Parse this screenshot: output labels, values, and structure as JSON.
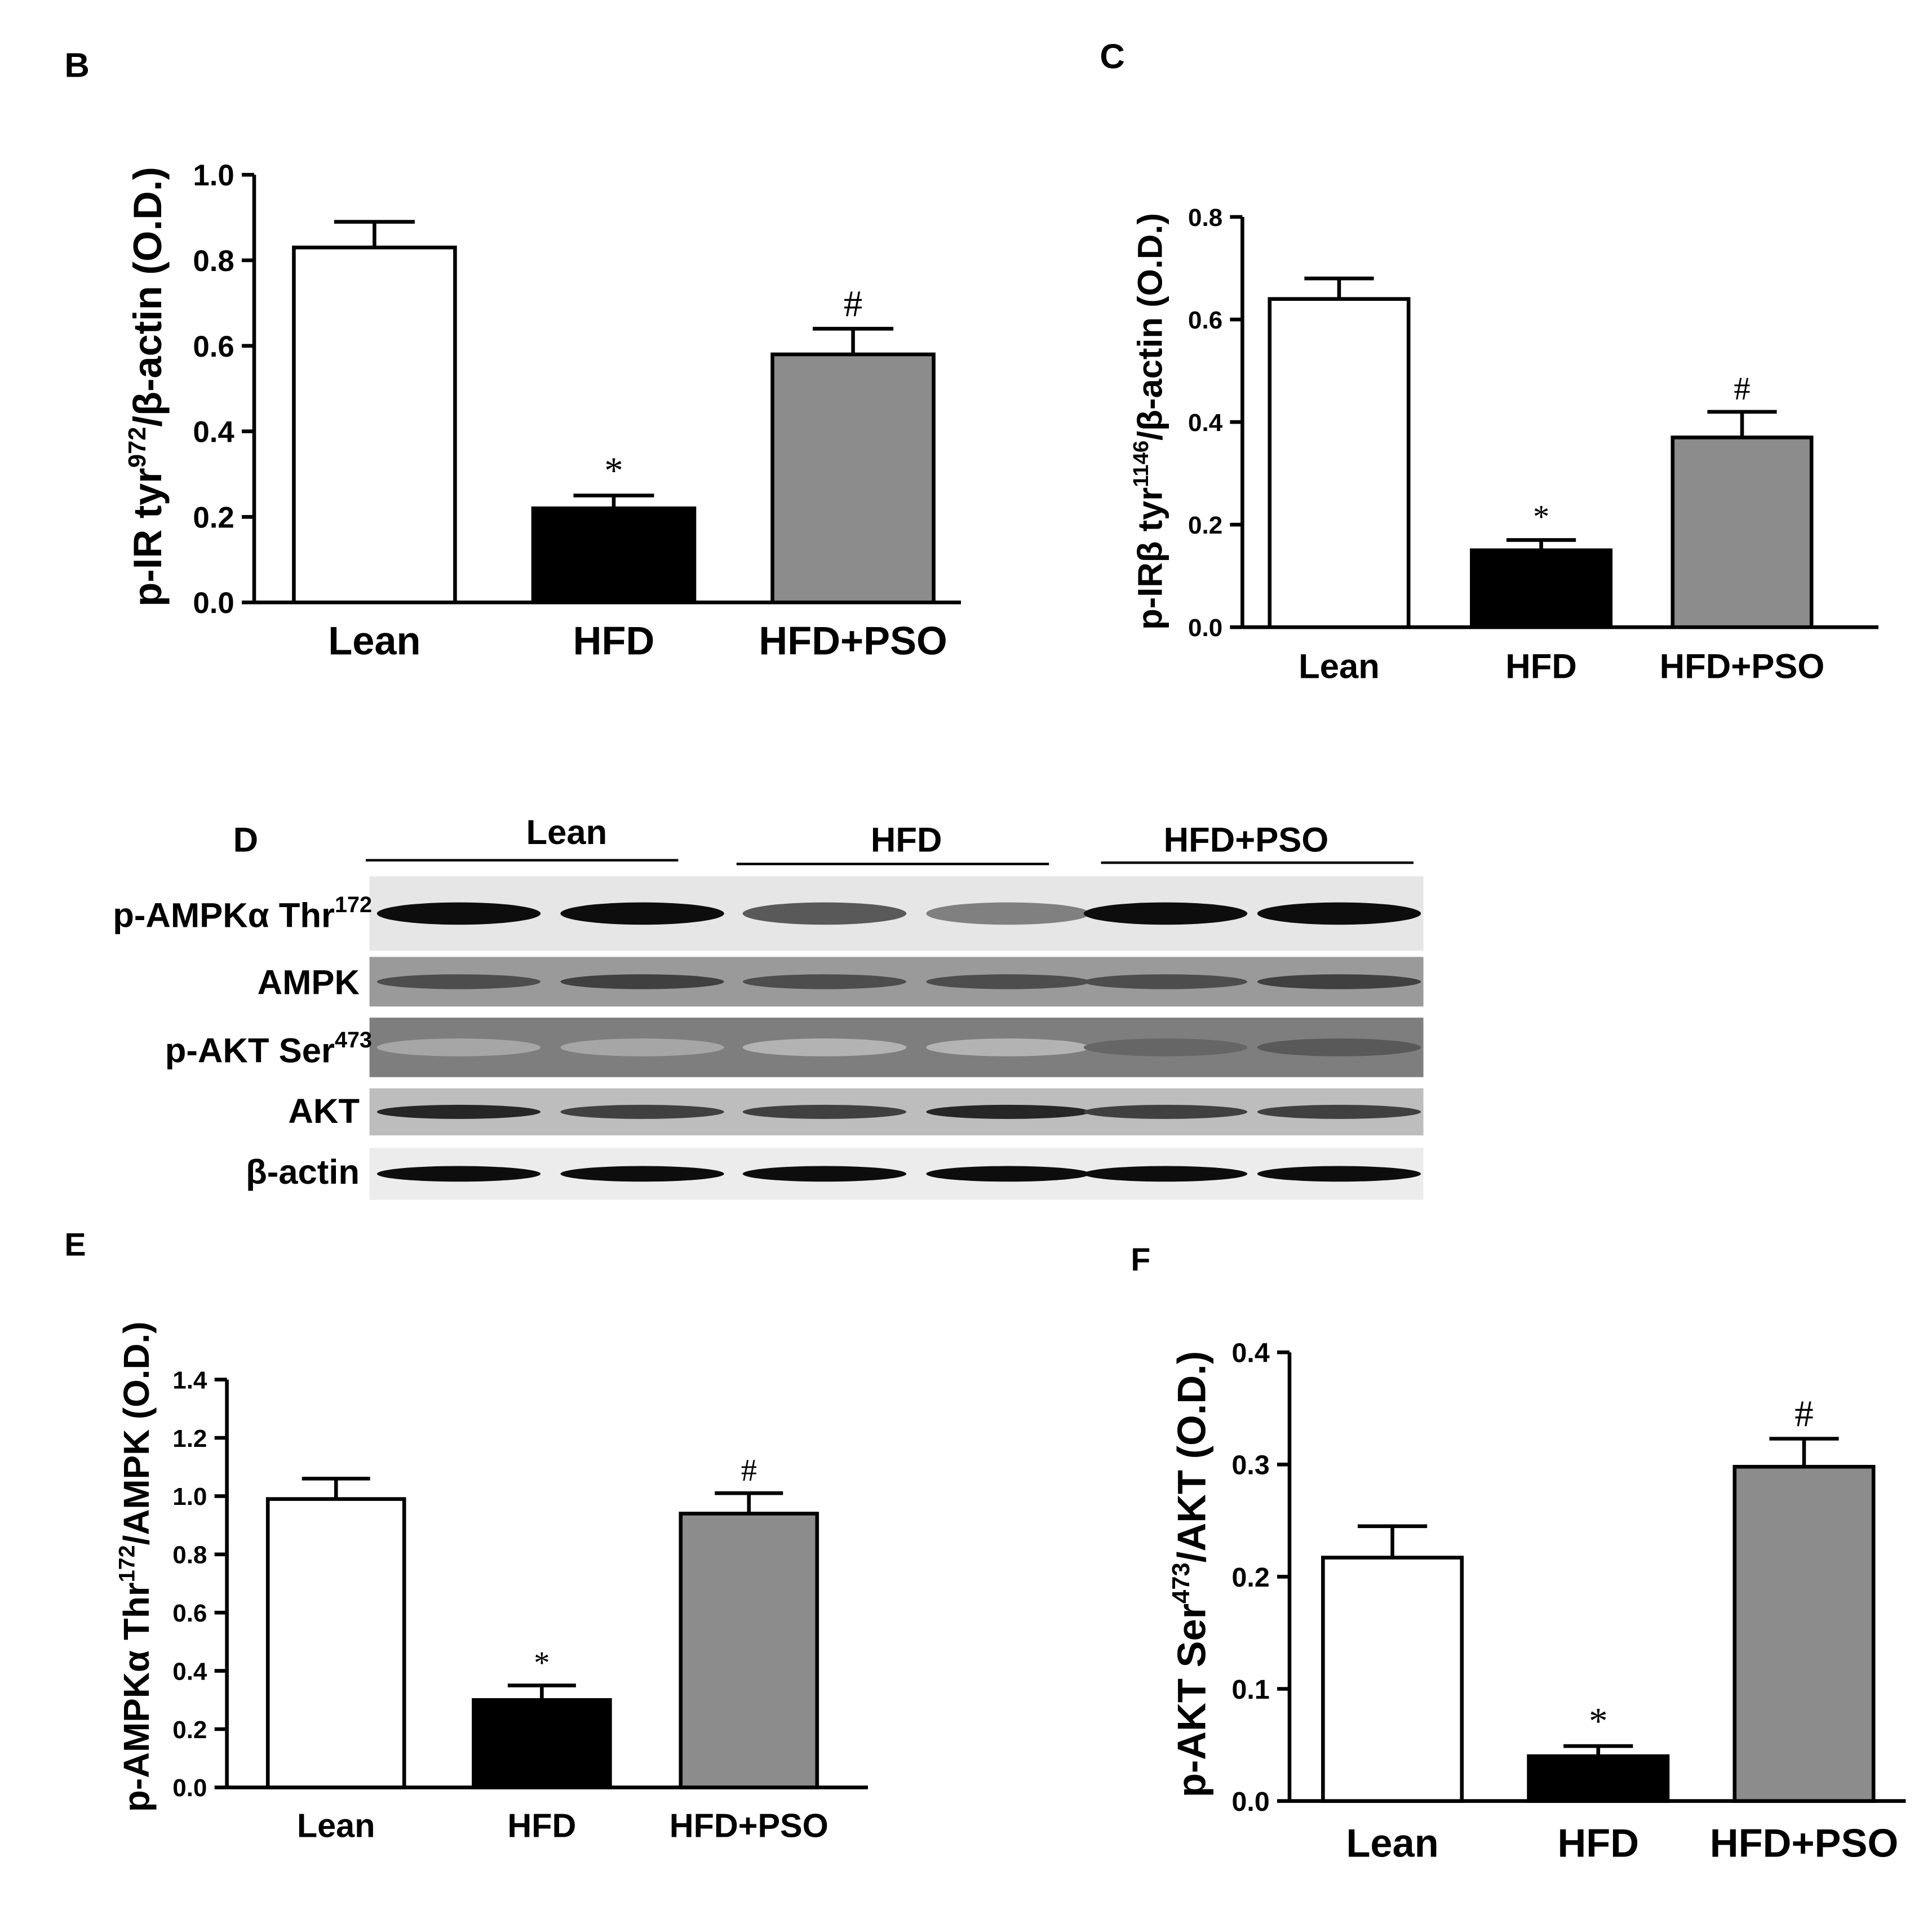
{
  "colors": {
    "Lean": "#ffffff",
    "HFD": "#000000",
    "HFD+PSO": "#8c8c8c"
  },
  "chart_data": [
    {
      "panel": "B",
      "type": "bar",
      "categories": [
        "Lean",
        "HFD",
        "HFD+PSO"
      ],
      "values": [
        0.83,
        0.22,
        0.58
      ],
      "errors": [
        0.06,
        0.03,
        0.06
      ],
      "significance": [
        "",
        "*",
        "#"
      ],
      "ylabel_parts": [
        "p-IR tyr",
        "972",
        "/β-actin (O.D.)"
      ],
      "ylim": [
        0,
        1.0
      ],
      "yticks": [
        "0.0",
        "0.2",
        "0.4",
        "0.6",
        "0.8",
        "1.0"
      ]
    },
    {
      "panel": "C",
      "type": "bar",
      "categories": [
        "Lean",
        "HFD",
        "HFD+PSO"
      ],
      "values": [
        0.64,
        0.15,
        0.37
      ],
      "errors": [
        0.04,
        0.02,
        0.05
      ],
      "significance": [
        "",
        "*",
        "#"
      ],
      "ylabel_parts": [
        "p-IRβ tyr",
        "1146",
        "/β-actin (O.D.)"
      ],
      "ylim": [
        0,
        0.8
      ],
      "yticks": [
        "0.0",
        "0.2",
        "0.4",
        "0.6",
        "0.8"
      ]
    },
    {
      "panel": "E",
      "type": "bar",
      "categories": [
        "Lean",
        "HFD",
        "HFD+PSO"
      ],
      "values": [
        0.99,
        0.3,
        0.94
      ],
      "errors": [
        0.07,
        0.05,
        0.07
      ],
      "significance": [
        "",
        "*",
        "#"
      ],
      "ylabel_parts": [
        "p-AMPKα Thr",
        "172",
        "/AMPK (O.D.)"
      ],
      "ylim": [
        0,
        1.4
      ],
      "yticks": [
        "0.0",
        "0.2",
        "0.4",
        "0.6",
        "0.8",
        "1.0",
        "1.2",
        "1.4"
      ]
    },
    {
      "panel": "F",
      "type": "bar",
      "categories": [
        "Lean",
        "HFD",
        "HFD+PSO"
      ],
      "values": [
        0.217,
        0.04,
        0.298
      ],
      "errors": [
        0.028,
        0.009,
        0.025
      ],
      "significance": [
        "",
        "*",
        "#"
      ],
      "ylabel_parts": [
        "p-AKT Ser",
        "473",
        "/AKT (O.D.)"
      ],
      "ylim": [
        0,
        0.4
      ],
      "yticks": [
        "0.0",
        "0.1",
        "0.2",
        "0.3",
        "0.4"
      ]
    }
  ],
  "blot": {
    "panel": "D",
    "groups": [
      "Lean",
      "HFD",
      "HFD+PSO"
    ],
    "rows": [
      {
        "label": "p-AMPKα Thr",
        "sup": "172",
        "intensity": [
          0.95,
          0.95,
          0.65,
          0.5,
          0.95,
          0.95
        ]
      },
      {
        "label": "AMPK",
        "sup": "",
        "intensity": [
          0.7,
          0.75,
          0.7,
          0.7,
          0.7,
          0.75
        ]
      },
      {
        "label": "p-AKT Ser",
        "sup": "473",
        "intensity": [
          0.35,
          0.35,
          0.3,
          0.3,
          0.6,
          0.65
        ]
      },
      {
        "label": "AKT",
        "sup": "",
        "intensity": [
          0.85,
          0.75,
          0.75,
          0.85,
          0.75,
          0.75
        ]
      },
      {
        "label": "β-actin",
        "sup": "",
        "intensity": [
          0.95,
          0.95,
          0.95,
          0.95,
          0.95,
          0.95
        ]
      }
    ]
  }
}
